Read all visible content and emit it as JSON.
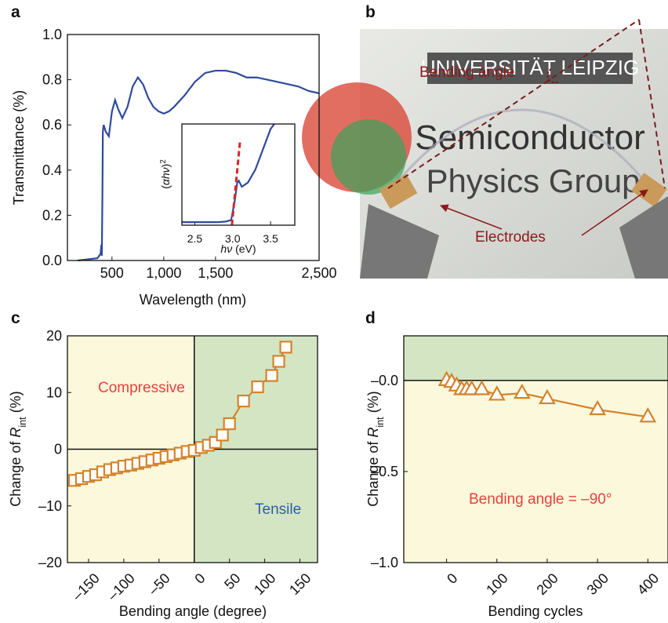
{
  "chart_data": [
    {
      "type": "line",
      "panel": "a",
      "xlabel": "Wavelength (nm)",
      "ylabel": [
        "Transmittance (%)"
      ],
      "xlim": [
        70,
        2500
      ],
      "ylim": [
        0,
        1
      ],
      "xticks": [
        500,
        {
          "value": 1000,
          "label": "1,000"
        },
        {
          "value": 1500,
          "label": "1,500"
        },
        {
          "value": 2500,
          "label": "2,500"
        }
      ],
      "yticks": [
        {
          "value": 0,
          "label": "0.0"
        },
        0.2,
        0.4,
        0.6,
        0.8,
        {
          "value": 1,
          "label": "1.0"
        }
      ],
      "series": [
        {
          "color": "#2e4a9e",
          "x": [
            170,
            360,
            390,
            398,
            402,
            408,
            412,
            420,
            440,
            470,
            500,
            530,
            560,
            600,
            650,
            700,
            750,
            800,
            850,
            900,
            950,
            1000,
            1050,
            1100,
            1200,
            1300,
            1400,
            1500,
            1600,
            1700,
            1800,
            1900,
            2000,
            2100,
            2200,
            2300,
            2400,
            2500
          ],
          "values": [
            0,
            0.01,
            0.03,
            0.07,
            0.02,
            0.3,
            0.57,
            0.6,
            0.57,
            0.55,
            0.66,
            0.71,
            0.67,
            0.63,
            0.68,
            0.77,
            0.81,
            0.78,
            0.72,
            0.68,
            0.66,
            0.65,
            0.66,
            0.68,
            0.73,
            0.79,
            0.83,
            0.84,
            0.84,
            0.83,
            0.81,
            0.81,
            0.8,
            0.79,
            0.78,
            0.77,
            0.75,
            0.74
          ]
        }
      ]
    },
    {
      "type": "line",
      "xlabel": [
        "hν",
        " (eV)"
      ],
      "ylabel": [
        "(",
        "αhν",
        ")",
        "2"
      ],
      "xlim": [
        2.33,
        3.82
      ],
      "ylim": [
        0,
        1
      ],
      "xticks": [
        2.5,
        {
          "value": 3,
          "label": "3.0"
        },
        3.5
      ],
      "yticks": [],
      "series": [
        {
          "color": "#2e4a9e",
          "x": [
            2.33,
            2.5,
            2.8,
            2.9,
            2.98,
            3.03,
            3.06,
            3.08,
            3.12,
            3.2,
            3.3,
            3.4,
            3.5,
            3.55
          ],
          "values": [
            0.03,
            0.03,
            0.03,
            0.035,
            0.05,
            0.25,
            0.42,
            0.44,
            0.38,
            0.42,
            0.55,
            0.75,
            0.95,
            1.0
          ]
        },
        {
          "color": "#d7262b",
          "dash": true,
          "x": [
            2.99,
            3.1
          ],
          "values": [
            0,
            0.85
          ]
        }
      ]
    },
    {
      "type": "line",
      "panel": "c",
      "xlabel": "Bending angle (degree)",
      "ylabel": [
        "Change of ",
        "R",
        "int",
        " (%)"
      ],
      "xlim": [
        -180,
        175
      ],
      "ylim": [
        -20,
        20
      ],
      "xticks": [
        {
          "value": -150,
          "label": "–150"
        },
        {
          "value": -100,
          "label": "–100"
        },
        {
          "value": -50,
          "label": "–50"
        },
        0,
        50,
        100,
        150
      ],
      "yticks": [
        {
          "value": -20,
          "label": "–20"
        },
        {
          "value": -10,
          "label": "–10"
        },
        0,
        10,
        20
      ],
      "shading": {
        "axis": "x",
        "negative": "#fbf8dc",
        "positive": "#d4e5c3"
      },
      "zero_lines": true,
      "annotations": [
        {
          "text": "Compressive",
          "color": "#e8413b"
        },
        {
          "text": "Tensile",
          "color": "#2d5fa6"
        }
      ],
      "series": [
        {
          "color": "#d4832a",
          "marker": "square",
          "x": [
            -170,
            -160,
            -150,
            -140,
            -130,
            -120,
            -110,
            -100,
            -90,
            -80,
            -70,
            -60,
            -50,
            -40,
            -30,
            -20,
            -10,
            0,
            10,
            20,
            30,
            40,
            50,
            70,
            90,
            110,
            120,
            130
          ],
          "values": [
            -5.5,
            -5.2,
            -4.8,
            -4.5,
            -4,
            -3.6,
            -3.3,
            -3,
            -2.8,
            -2.5,
            -2.2,
            -1.9,
            -1.6,
            -1.3,
            -1,
            -0.7,
            -0.4,
            -0.2,
            0.3,
            0.7,
            1.2,
            2.5,
            4.5,
            8.5,
            11,
            13,
            15.5,
            18
          ]
        }
      ]
    },
    {
      "type": "line",
      "panel": "d",
      "xlabel": "Bending cycles",
      "ylabel": [
        "Change of ",
        "R",
        "int",
        " (%)"
      ],
      "xlim": [
        -85,
        440
      ],
      "ylim": [
        -1,
        0.245
      ],
      "xticks": [
        0,
        100,
        200,
        300,
        400
      ],
      "yticks": [
        {
          "value": -1,
          "label": "–1.0"
        },
        {
          "value": -0.5,
          "label": "–0.5"
        },
        {
          "value": 0,
          "label": "–0.0"
        }
      ],
      "shading": {
        "axis": "y",
        "negative": "#fbf8dc",
        "positive": "#d4e5c3"
      },
      "zero_lines": true,
      "annotations": [
        {
          "text": "Bending angle = –90°",
          "color": "#e8413b"
        }
      ],
      "series": [
        {
          "color": "#d4832a",
          "marker": "triangle",
          "x": [
            0,
            10,
            20,
            30,
            40,
            50,
            70,
            100,
            150,
            200,
            300,
            400
          ],
          "values": [
            0,
            -0.01,
            -0.03,
            -0.05,
            -0.05,
            -0.05,
            -0.05,
            -0.08,
            -0.07,
            -0.1,
            -0.16,
            -0.2
          ]
        }
      ]
    }
  ],
  "photo": {
    "panel": "b",
    "sign": [
      "UNIVERSITÄT LEIPZIG",
      "Semiconductor",
      "Physics Group"
    ],
    "annotations": [
      "Bending angle",
      "Electrodes"
    ]
  }
}
